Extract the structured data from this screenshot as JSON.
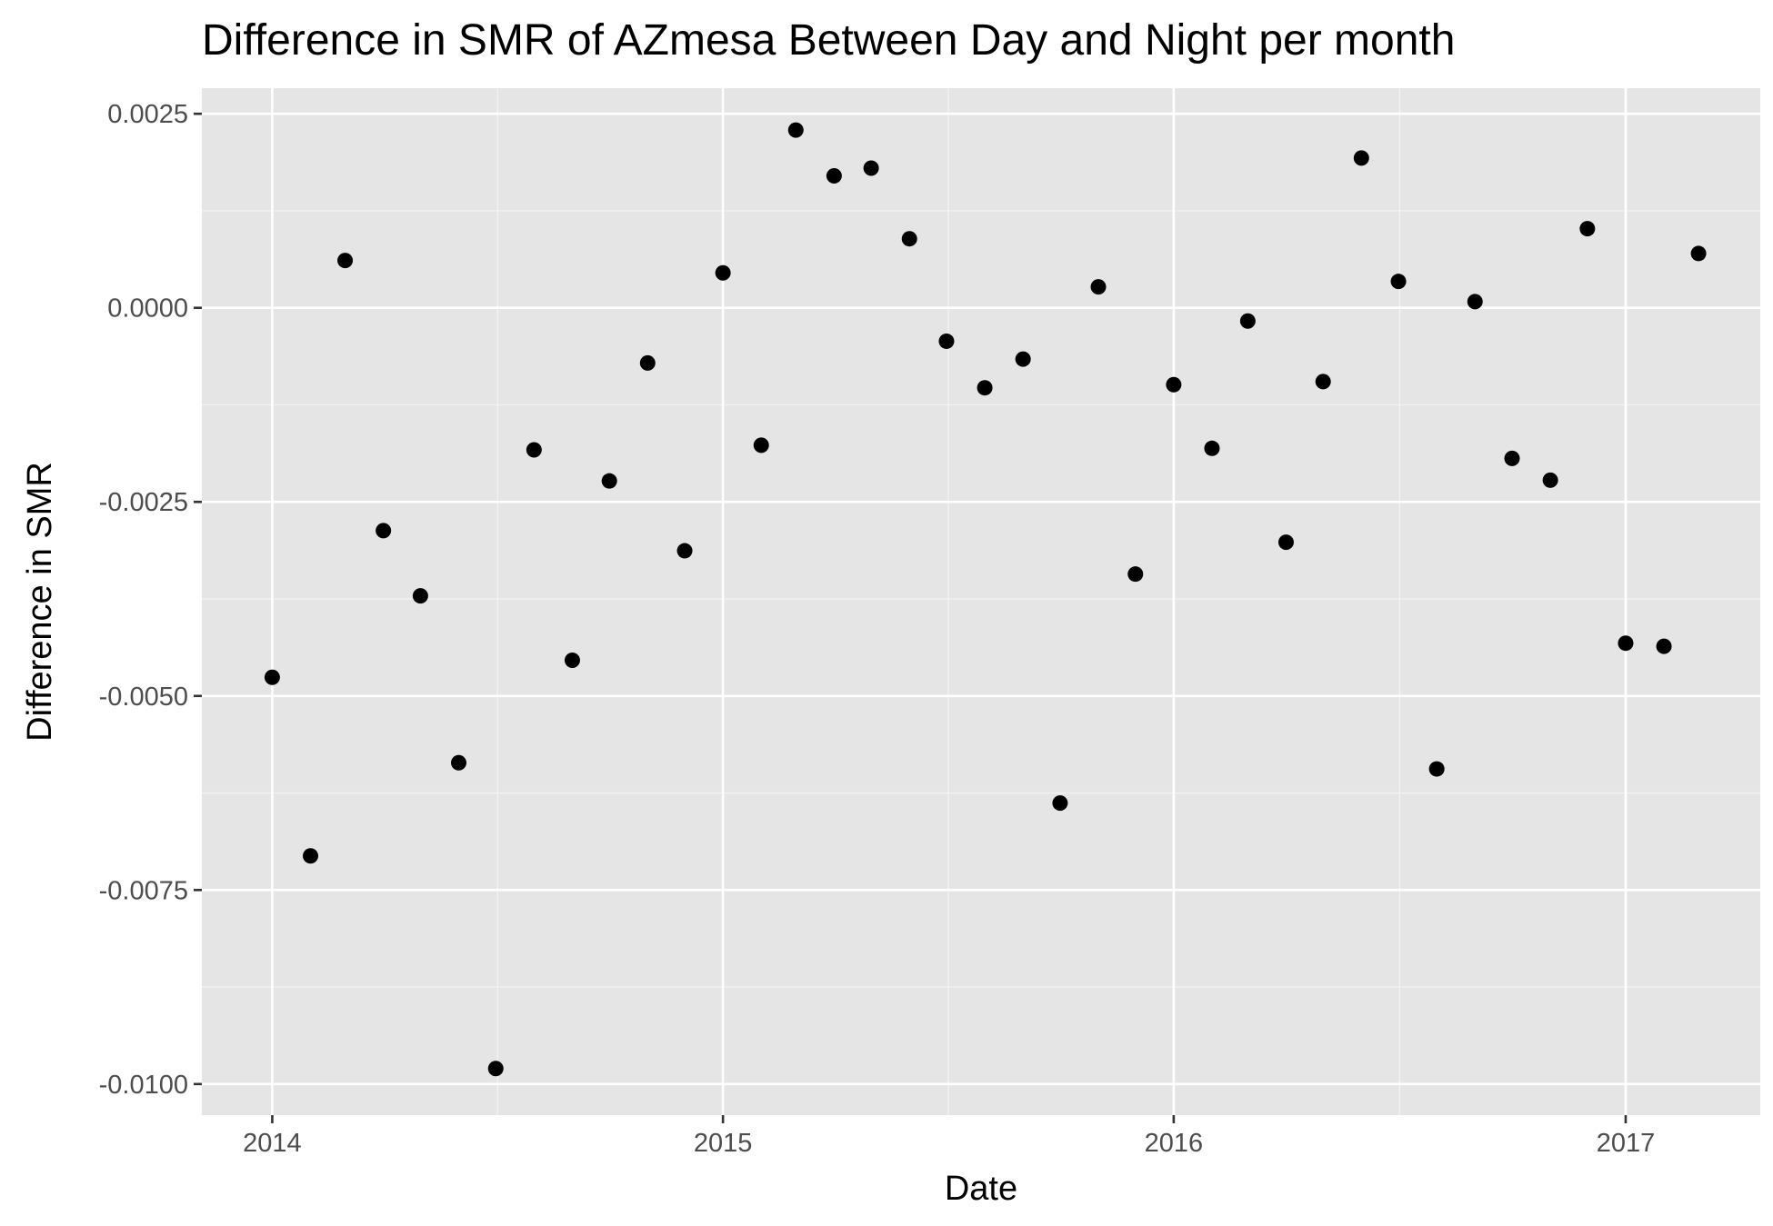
{
  "chart_data": {
    "type": "scatter",
    "title": "Difference in SMR of AZmesa Between Day and Night per month",
    "xlabel": "Date",
    "ylabel": "Difference in SMR",
    "x_ticks": [
      "2014",
      "2015",
      "2016",
      "2017"
    ],
    "y_ticks": [
      "0.0025",
      "0.0000",
      "-0.0025",
      "-0.0050",
      "-0.0075",
      "-0.0100"
    ],
    "xlim": [
      "2013-11-05",
      "2017-04-20"
    ],
    "ylim": [
      -0.0104,
      0.00283
    ],
    "grid": true,
    "background": "#e5e5e5",
    "point_color": "#000000",
    "points": [
      {
        "x": "2014-01",
        "y": -0.00476
      },
      {
        "x": "2014-02",
        "y": -0.00706
      },
      {
        "x": "2014-03",
        "y": 0.00061
      },
      {
        "x": "2014-04",
        "y": -0.00287
      },
      {
        "x": "2014-05",
        "y": -0.00371
      },
      {
        "x": "2014-06",
        "y": -0.00586
      },
      {
        "x": "2014-07",
        "y": -0.0098
      },
      {
        "x": "2014-08",
        "y": -0.00183
      },
      {
        "x": "2014-09",
        "y": -0.00454
      },
      {
        "x": "2014-10",
        "y": -0.00223
      },
      {
        "x": "2014-11",
        "y": -0.00071
      },
      {
        "x": "2014-12",
        "y": -0.00313
      },
      {
        "x": "2015-01",
        "y": 0.00045
      },
      {
        "x": "2015-02",
        "y": -0.00177
      },
      {
        "x": "2015-03",
        "y": 0.00229
      },
      {
        "x": "2015-04",
        "y": 0.0017
      },
      {
        "x": "2015-05",
        "y": 0.0018
      },
      {
        "x": "2015-06",
        "y": 0.00089
      },
      {
        "x": "2015-07",
        "y": -0.00043
      },
      {
        "x": "2015-08",
        "y": -0.00103
      },
      {
        "x": "2015-09",
        "y": -0.00066
      },
      {
        "x": "2015-10",
        "y": -0.00638
      },
      {
        "x": "2015-11",
        "y": 0.00027
      },
      {
        "x": "2015-12",
        "y": -0.00343
      },
      {
        "x": "2016-01",
        "y": -0.00099
      },
      {
        "x": "2016-02",
        "y": -0.00181
      },
      {
        "x": "2016-03",
        "y": -0.00017
      },
      {
        "x": "2016-04",
        "y": -0.00302
      },
      {
        "x": "2016-05",
        "y": -0.00095
      },
      {
        "x": "2016-06",
        "y": 0.00193
      },
      {
        "x": "2016-07",
        "y": 0.00034
      },
      {
        "x": "2016-08",
        "y": -0.00594
      },
      {
        "x": "2016-09",
        "y": 8e-05
      },
      {
        "x": "2016-10",
        "y": -0.00194
      },
      {
        "x": "2016-11",
        "y": -0.00222
      },
      {
        "x": "2016-12",
        "y": 0.00102
      },
      {
        "x": "2017-01",
        "y": -0.00432
      },
      {
        "x": "2017-02",
        "y": -0.00436
      },
      {
        "x": "2017-03",
        "y": 0.0007
      }
    ]
  }
}
